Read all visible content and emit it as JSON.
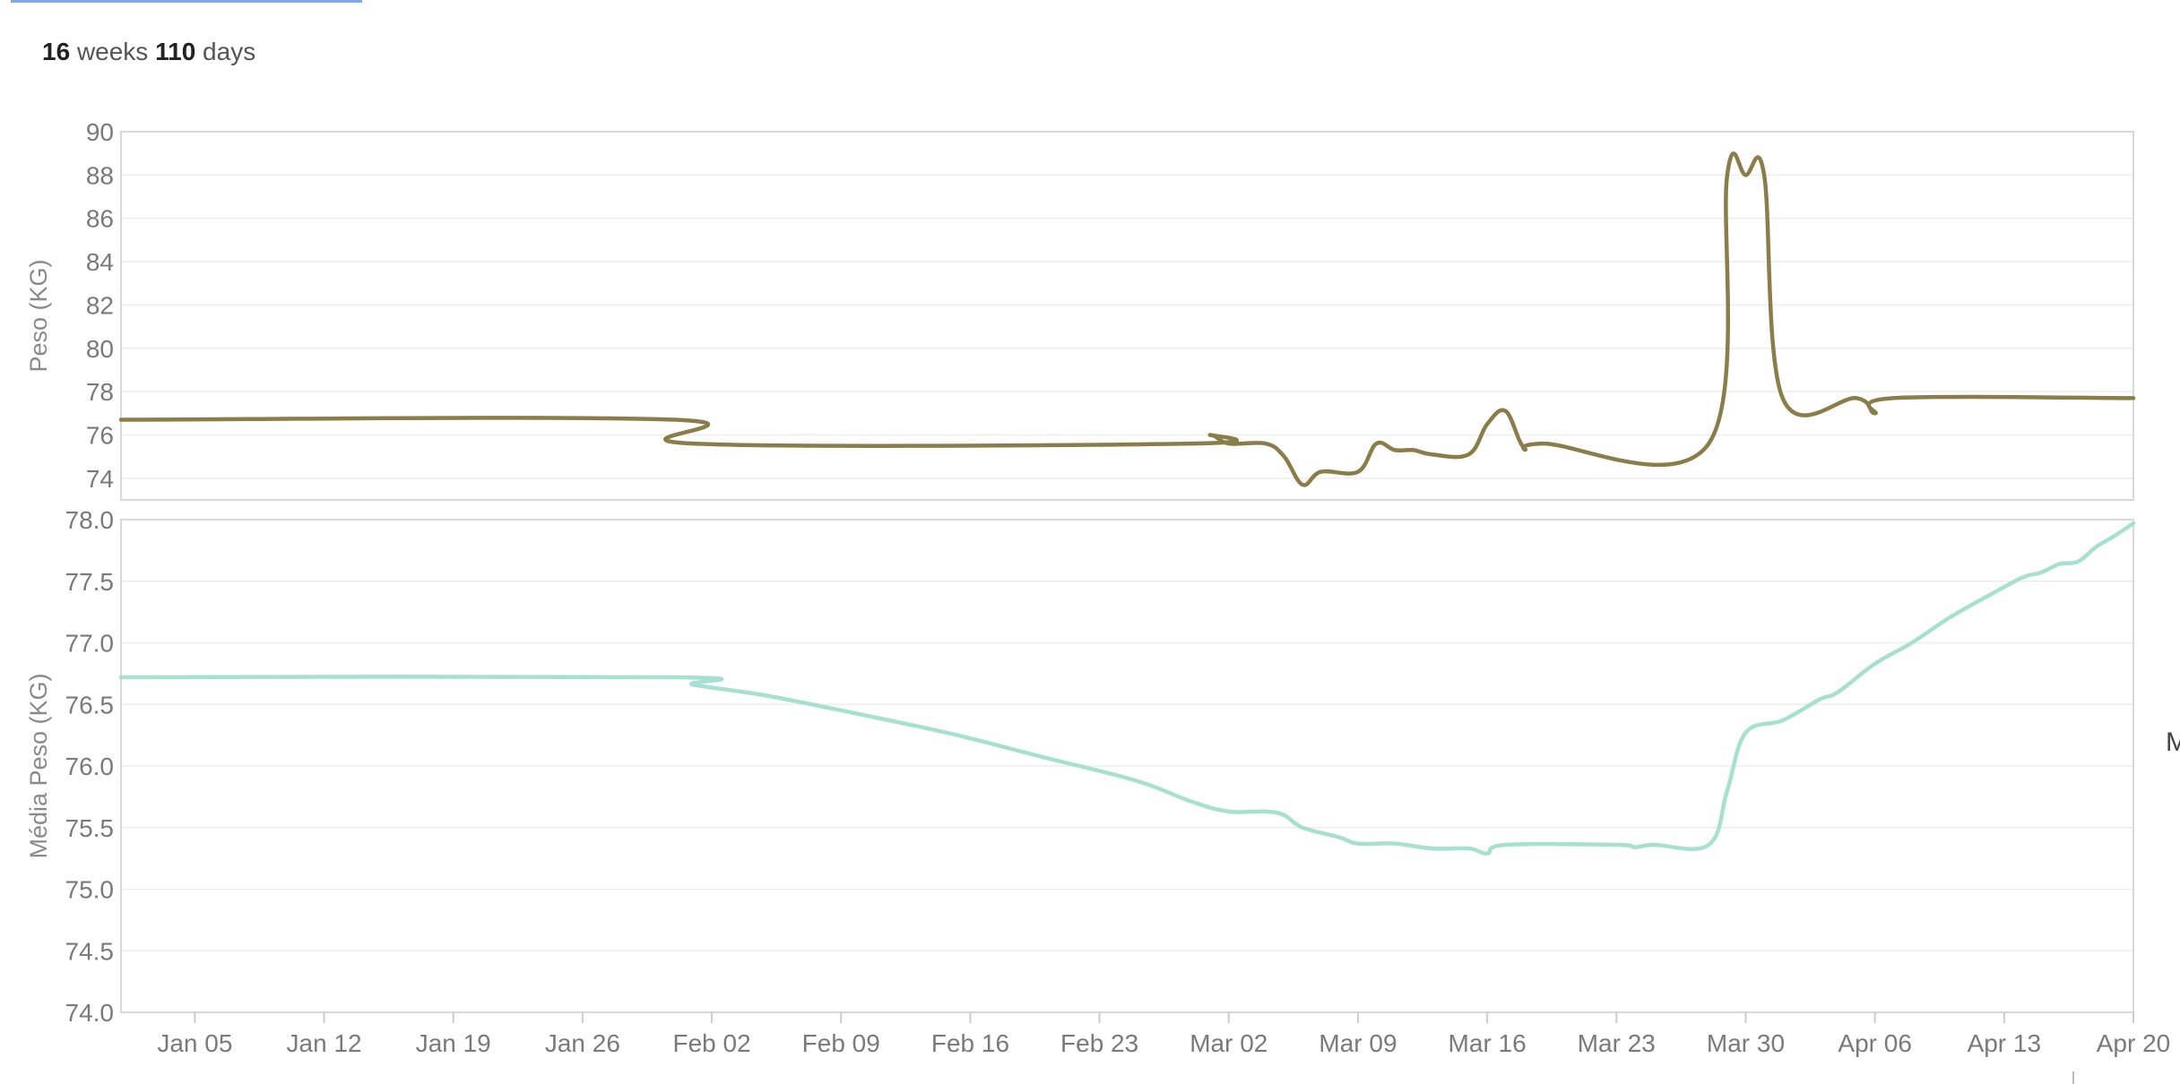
{
  "header": {
    "weeks_value": "16",
    "weeks_unit": "weeks",
    "days_value": "110",
    "days_unit": "days"
  },
  "side_label": "M",
  "chart_data": [
    {
      "type": "line",
      "ylabel": "Peso (KG)",
      "ylim": [
        73,
        90
      ],
      "yticks": [
        74,
        76,
        78,
        80,
        82,
        84,
        86,
        88,
        90
      ],
      "xlim": [
        "2025-01-01",
        "2025-04-20"
      ],
      "grid": true,
      "color": "#8b7d4a",
      "series": [
        {
          "points": [
            [
              "2025-01-01",
              76.7
            ],
            [
              "2025-01-31",
              76.7
            ],
            [
              "2025-02-01",
              75.6
            ],
            [
              "2025-02-28",
              75.6
            ],
            [
              "2025-03-01",
              76.0
            ],
            [
              "2025-03-02",
              75.6
            ],
            [
              "2025-03-04",
              75.6
            ],
            [
              "2025-03-05",
              75.0
            ],
            [
              "2025-03-06",
              73.7
            ],
            [
              "2025-03-07",
              74.3
            ],
            [
              "2025-03-09",
              74.3
            ],
            [
              "2025-03-10",
              75.6
            ],
            [
              "2025-03-11",
              75.3
            ],
            [
              "2025-03-12",
              75.3
            ],
            [
              "2025-03-13",
              75.1
            ],
            [
              "2025-03-15",
              75.1
            ],
            [
              "2025-03-16",
              76.5
            ],
            [
              "2025-03-17",
              77.1
            ],
            [
              "2025-03-18",
              75.4
            ],
            [
              "2025-03-19",
              75.6
            ],
            [
              "2025-03-28",
              75.6
            ],
            [
              "2025-03-29",
              88.0
            ],
            [
              "2025-03-30",
              88.0
            ],
            [
              "2025-03-31",
              88.0
            ],
            [
              "2025-04-01",
              77.7
            ],
            [
              "2025-04-05",
              77.7
            ],
            [
              "2025-04-06",
              77.0
            ],
            [
              "2025-04-07",
              77.7
            ],
            [
              "2025-04-20",
              77.7
            ]
          ]
        }
      ]
    },
    {
      "type": "line",
      "ylabel": "Média Peso (KG)",
      "ylim": [
        74.0,
        78.0
      ],
      "yticks": [
        "74.0",
        "74.5",
        "75.0",
        "75.5",
        "76.0",
        "76.5",
        "77.0",
        "77.5",
        "78.0"
      ],
      "xlim": [
        "2025-01-01",
        "2025-04-20"
      ],
      "xticks": [
        "Jan 05",
        "Jan 12",
        "Jan 19",
        "Jan 26",
        "Feb 02",
        "Feb 09",
        "Feb 16",
        "Feb 23",
        "Mar 02",
        "Mar 09",
        "Mar 16",
        "Mar 23",
        "Mar 30",
        "Apr 06",
        "Apr 13",
        "Apr 20"
      ],
      "grid": true,
      "color": "#a8e0cf",
      "series": [
        {
          "points": [
            [
              "2025-01-01",
              76.72
            ],
            [
              "2025-01-31",
              76.72
            ],
            [
              "2025-02-01",
              76.66
            ],
            [
              "2025-02-05",
              76.57
            ],
            [
              "2025-02-10",
              76.42
            ],
            [
              "2025-02-15",
              76.26
            ],
            [
              "2025-02-20",
              76.07
            ],
            [
              "2025-02-25",
              75.88
            ],
            [
              "2025-02-28",
              75.71
            ],
            [
              "2025-03-02",
              75.63
            ],
            [
              "2025-03-04",
              75.63
            ],
            [
              "2025-03-05",
              75.6
            ],
            [
              "2025-03-06",
              75.5
            ],
            [
              "2025-03-08",
              75.42
            ],
            [
              "2025-03-09",
              75.37
            ],
            [
              "2025-03-11",
              75.37
            ],
            [
              "2025-03-13",
              75.33
            ],
            [
              "2025-03-15",
              75.33
            ],
            [
              "2025-03-16",
              75.29
            ],
            [
              "2025-03-17",
              75.36
            ],
            [
              "2025-03-23",
              75.36
            ],
            [
              "2025-03-24",
              75.34
            ],
            [
              "2025-03-25",
              75.36
            ],
            [
              "2025-03-28",
              75.36
            ],
            [
              "2025-03-29",
              75.8
            ],
            [
              "2025-03-30",
              76.27
            ],
            [
              "2025-04-01",
              76.37
            ],
            [
              "2025-04-03",
              76.54
            ],
            [
              "2025-04-04",
              76.6
            ],
            [
              "2025-04-06",
              76.83
            ],
            [
              "2025-04-08",
              77.0
            ],
            [
              "2025-04-10",
              77.2
            ],
            [
              "2025-04-12",
              77.37
            ],
            [
              "2025-04-14",
              77.53
            ],
            [
              "2025-04-15",
              77.57
            ],
            [
              "2025-04-16",
              77.64
            ],
            [
              "2025-04-17",
              77.66
            ],
            [
              "2025-04-18",
              77.78
            ],
            [
              "2025-04-19",
              77.87
            ],
            [
              "2025-04-20",
              77.97
            ]
          ]
        }
      ]
    }
  ]
}
